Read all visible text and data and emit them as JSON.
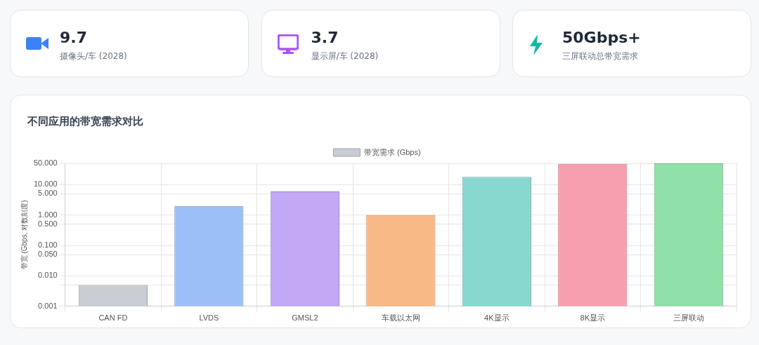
{
  "chart_data": [
    {
      "type": "other",
      "annotations": [
        "9.7",
        "摄像头/车 (2028)",
        "3.7",
        "显示屏/车 (2028)",
        "50Gbps+",
        "三屏联动总带宽需求"
      ]
    },
    {
      "type": "bar",
      "title": "不同应用的带宽需求对比",
      "ylabel": "带宽 (Gbps, 对数刻度)",
      "categories": [
        "CAN FD",
        "LVDS",
        "GMSL2",
        "车载以太网",
        "4K显示",
        "8K显示",
        "三屏联动"
      ],
      "series": [
        {
          "name": "带宽需求 (Gbps)",
          "colors": [
            "#c9ccd3",
            "#9dbff8",
            "#c3a8f6",
            "#f9b986",
            "#88d8cf",
            "#f89fae",
            "#8fe0a9"
          ],
          "values": [
            0.005,
            2,
            6,
            1,
            18,
            48,
            50
          ]
        }
      ],
      "log": "y",
      "ylim": [
        0.001,
        50
      ],
      "yticks": [
        {
          "value": 0.001,
          "label": "0.001"
        },
        {
          "value": 0.005,
          "label": null
        },
        {
          "value": 0.01,
          "label": "0.010"
        },
        {
          "value": 0.05,
          "label": "0.050"
        },
        {
          "value": 0.1,
          "label": "0.100"
        },
        {
          "value": 0.5,
          "label": "0.500"
        },
        {
          "value": 1,
          "label": "1.000"
        },
        {
          "value": 5,
          "label": "5.000"
        },
        {
          "value": 10,
          "label": "10.000"
        },
        {
          "value": 50,
          "label": "50.000"
        }
      ],
      "grid": true,
      "legend": "top"
    }
  ]
}
